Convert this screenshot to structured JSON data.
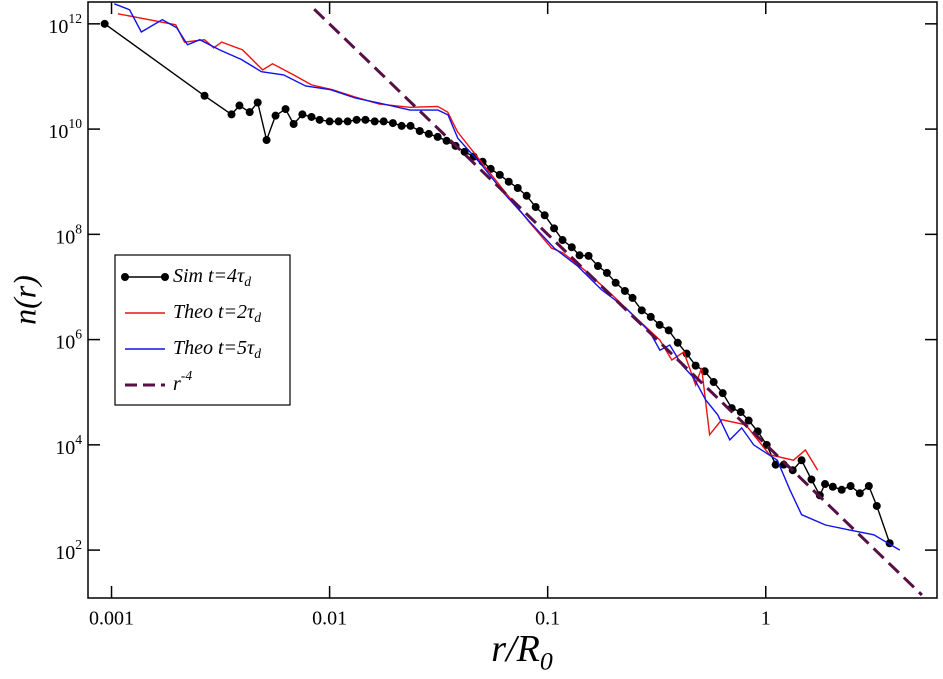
{
  "chart_data": {
    "type": "line",
    "xlabel": "r/R_0",
    "ylabel": "n(r)",
    "xscale": "log",
    "yscale": "log",
    "xlim": [
      0.00078,
      6.1
    ],
    "ylim": [
      12.3,
      2600000000000.0
    ],
    "xticks": [
      0.001,
      0.01,
      0.1,
      1
    ],
    "yticks": [
      {
        "value": 100,
        "label": "10^2"
      },
      {
        "value": 10000,
        "label": "10^4"
      },
      {
        "value": 1000000,
        "label": "10^6"
      },
      {
        "value": 100000000,
        "label": "10^8"
      },
      {
        "value": 10000000000,
        "label": "10^10"
      },
      {
        "value": 1000000000000,
        "label": "10^12"
      }
    ],
    "legend": "left",
    "series": [
      {
        "name": "Sim  t=4τ_d",
        "color": "#000000",
        "markers": true,
        "dashed": false,
        "x": [
          0.00093,
          0.00267,
          0.00355,
          0.00386,
          0.0043,
          0.00468,
          0.00514,
          0.00565,
          0.00628,
          0.00684,
          0.0075,
          0.00826,
          0.009,
          0.01,
          0.011,
          0.0121,
          0.0133,
          0.0146,
          0.0161,
          0.0177,
          0.0195,
          0.0214,
          0.0235,
          0.0259,
          0.0285,
          0.0313,
          0.0344,
          0.0378,
          0.0416,
          0.0458,
          0.0503,
          0.0548,
          0.0603,
          0.0663,
          0.0729,
          0.0801,
          0.0881,
          0.0969,
          0.107,
          0.117,
          0.129,
          0.14,
          0.154,
          0.17,
          0.187,
          0.205,
          0.226,
          0.245,
          0.27,
          0.297,
          0.326,
          0.359,
          0.395,
          0.434,
          0.477,
          0.525,
          0.577,
          0.635,
          0.698,
          0.768,
          0.835,
          0.919,
          1.01,
          1.11,
          1.21,
          1.33,
          1.46,
          1.62,
          1.77,
          1.87,
          2.03,
          2.23,
          2.45,
          2.7,
          2.97,
          3.23,
          3.7
        ],
        "values": [
          1000000000000.0,
          43000000000.0,
          19000000000.0,
          28000000000.0,
          21000000000.0,
          32000000000.0,
          6200000000.0,
          18000000000.0,
          24000000000.0,
          12500000000.0,
          19000000000.0,
          17000000000.0,
          15000000000.0,
          14000000000.0,
          14000000000.0,
          14000000000.0,
          15000000000.0,
          15000000000.0,
          14000000000.0,
          14000000000.0,
          13000000000.0,
          11500000000.0,
          11500000000.0,
          9200000000.0,
          8100000000.0,
          7100000000.0,
          6000000000.0,
          4800000000.0,
          3700000000.0,
          3000000000.0,
          2400000000.0,
          1750000000.0,
          1350000000.0,
          1000000000.0,
          760000000.0,
          540000000.0,
          330000000.0,
          230000000.0,
          130000000.0,
          78000000.0,
          57000000.0,
          40000000.0,
          39000000.0,
          25000000.0,
          18500000.0,
          12000000.0,
          8400000.0,
          6200000.0,
          3600000.0,
          2700000.0,
          1900000.0,
          1500000.0,
          870000.0,
          540000.0,
          320000.0,
          250000.0,
          156000.0,
          96000.0,
          50000.0,
          42000.0,
          29000.0,
          18000.0,
          10000.0,
          4200,
          4200,
          3300,
          5100,
          2200,
          1100,
          1800,
          1600,
          1400,
          1650,
          1200,
          1650,
          690,
          135
        ]
      },
      {
        "name": "Theo t=2τ_d",
        "color": "#ee1111",
        "markers": false,
        "dashed": false,
        "x": [
          0.00107,
          0.00134,
          0.00197,
          0.00216,
          0.00267,
          0.00294,
          0.0032,
          0.00399,
          0.00493,
          0.00548,
          0.00684,
          0.00826,
          0.0103,
          0.013,
          0.0169,
          0.0233,
          0.0313,
          0.0348,
          0.0386,
          0.0488,
          0.0628,
          0.0809,
          0.104,
          0.118,
          0.152,
          0.197,
          0.254,
          0.327,
          0.371,
          0.421,
          0.477,
          0.508,
          0.553,
          0.628,
          0.809,
          1.04,
          1.34,
          1.52,
          1.73
        ],
        "values": [
          1550000000000.0,
          1300000000000.0,
          960000000000.0,
          450000000000.0,
          500000000000.0,
          350000000000.0,
          450000000000.0,
          320000000000.0,
          133000000000.0,
          174000000000.0,
          107000000000.0,
          69000000000.0,
          56000000000.0,
          41000000000.0,
          30000000000.0,
          26000000000.0,
          27000000000.0,
          21000000000.0,
          8900000000.0,
          2600000000.0,
          690000000.0,
          187000000.0,
          55000000.0,
          44000000.0,
          19000000.0,
          7100000.0,
          2600000.0,
          980000.0,
          410000.0,
          580000.0,
          137000.0,
          290000.0,
          15500.0,
          30000.0,
          24000.0,
          6500,
          5100,
          8000,
          3300
        ]
      },
      {
        "name": "Theo t=5τ_d",
        "color": "#1111ee",
        "markers": false,
        "dashed": false,
        "x": [
          0.00103,
          0.00121,
          0.00137,
          0.00171,
          0.00199,
          0.00223,
          0.00254,
          0.00313,
          0.00394,
          0.00487,
          0.00615,
          0.00776,
          0.0101,
          0.0131,
          0.017,
          0.0234,
          0.0314,
          0.0349,
          0.0387,
          0.0498,
          0.0641,
          0.0826,
          0.107,
          0.137,
          0.177,
          0.228,
          0.294,
          0.327,
          0.363,
          0.412,
          0.468,
          0.531,
          0.603,
          0.684,
          0.776,
          0.881,
          1.13,
          1.29,
          1.46,
          1.88,
          2.43,
          3.13,
          4.12
        ],
        "values": [
          2400000000000.0,
          1850000000000.0,
          700000000000.0,
          1200000000000.0,
          840000000000.0,
          400000000000.0,
          500000000000.0,
          320000000000.0,
          210000000000.0,
          123000000000.0,
          107000000000.0,
          66000000000.0,
          56000000000.0,
          39000000000.0,
          31000000000.0,
          23000000000.0,
          23000000000.0,
          18600000000.0,
          6700000000.0,
          2100000000.0,
          560000000.0,
          174000000.0,
          55000000.0,
          25000000.0,
          8800000.0,
          4000000.0,
          1400000.0,
          630000.0,
          790000.0,
          330000.0,
          187000.0,
          71000.0,
          37000.0,
          12400.0,
          21000.0,
          10000.0,
          5100,
          1400,
          470,
          300,
          240,
          195,
          100
        ]
      },
      {
        "name": "r^-4",
        "color": "#561045",
        "markers": false,
        "dashed": true,
        "x": [
          0.0085,
          5.2
        ],
        "values": [
          1900000000000.0,
          14
        ]
      }
    ]
  }
}
